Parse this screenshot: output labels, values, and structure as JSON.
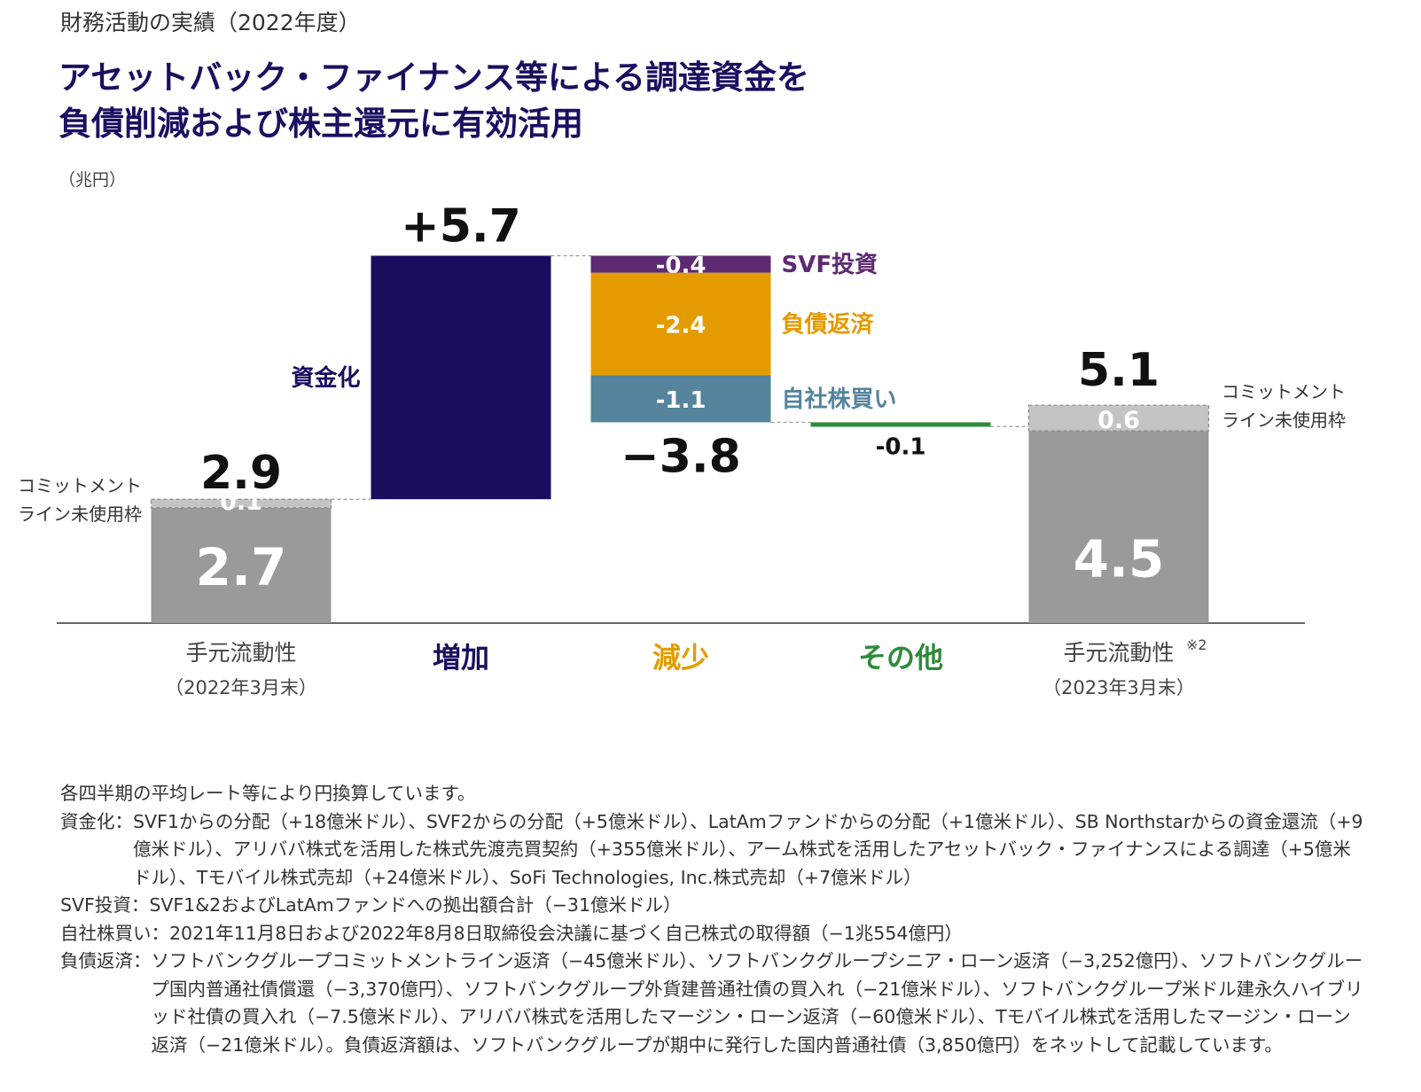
{
  "header": {
    "eyebrow": "財務活動の実績（2022年度）",
    "headline_line1": "アセットバック・ファイナンス等による調達資金を",
    "headline_line2": "負債削減および株主還元に有効活用"
  },
  "chart_data": {
    "type": "bar",
    "subtype": "waterfall",
    "unit_label": "（兆円）",
    "categories": [
      {
        "label": "手元流動性",
        "sublabel": "（2022年3月末）",
        "color": "#444444"
      },
      {
        "label": "増加",
        "sublabel": "",
        "color": "#1a1060"
      },
      {
        "label": "減少",
        "sublabel": "",
        "color": "#e39c00"
      },
      {
        "label": "その他",
        "sublabel": "",
        "color": "#2e8b3a"
      },
      {
        "label": "手元流動性",
        "sublabel": "（2023年3月末）",
        "color": "#444444",
        "superscript": "※2"
      }
    ],
    "start": {
      "base_value": 2.7,
      "base_label": "2.7",
      "commitment_value": 0.1,
      "commitment_label": "0.1",
      "total_label": "2.9",
      "commitment_note_line1": "コミットメント",
      "commitment_note_line2": "ライン未使用枠",
      "base_color": "#9a9a9a",
      "commitment_color": "#c4c4c4"
    },
    "increase": {
      "value": 5.7,
      "total_label": "+5.7",
      "name": "資金化",
      "color": "#1a0c5e"
    },
    "decrease": {
      "total": -3.8,
      "total_label": "−3.8",
      "components": [
        {
          "name": "SVF投資",
          "value": -0.4,
          "label": "-0.4",
          "color": "#5e2a72"
        },
        {
          "name": "負債返済",
          "value": -2.4,
          "label": "-2.4",
          "color": "#e49b00"
        },
        {
          "name": "自社株買い",
          "value": -1.1,
          "label": "-1.1",
          "color": "#55849c"
        }
      ]
    },
    "other": {
      "value": -0.1,
      "label": "-0.1",
      "color": "#2e8b3a"
    },
    "end": {
      "base_value": 4.5,
      "base_label": "4.5",
      "commitment_value": 0.6,
      "commitment_label": "0.6",
      "total_label": "5.1",
      "commitment_note_line1": "コミットメント",
      "commitment_note_line2": "ライン未使用枠",
      "base_color": "#9a9a9a",
      "commitment_color": "#c4c4c4"
    }
  },
  "notes": [
    {
      "label": "",
      "text": "各四半期の平均レート等により円換算しています。"
    },
    {
      "label": "資金化：",
      "text": "SVF1からの分配（+18億米ドル）、SVF2からの分配（+5億米ドル）、LatAmファンドからの分配（+1億米ドル）、SB Northstarからの資金還流（+9億米ドル）、アリババ株式を活用した株式先渡売買契約（+355億米ドル）、アーム株式を活用したアセットバック・ファイナンスによる調達（+5億米ドル）、Tモバイル株式売却（+24億米ドル）、SoFi Technologies, Inc.株式売却（+7億米ドル）"
    },
    {
      "label": "SVF投資：",
      "text": "SVF1&2およびLatAmファンドへの拠出額合計（−31億米ドル）"
    },
    {
      "label": "自社株買い：",
      "text": "2021年11月8日および2022年8月8日取締役会決議に基づく自己株式の取得額（−1兆554億円）"
    },
    {
      "label": "負債返済：",
      "text": "ソフトバンクグループコミットメントライン返済（−45億米ドル）、ソフトバンクグループシニア・ローン返済（−3,252億円）、ソフトバンクグループ国内普通社債償還（−3,370億円）、ソフトバンクグループ外貨建普通社債の買入れ（−21億米ドル）、ソフトバンクグループ米ドル建永久ハイブリッド社債の買入れ（−7.5億米ドル）、アリババ株式を活用したマージン・ローン返済（−60億米ドル）、Tモバイル株式を活用したマージン・ローン返済（−21億米ドル）。負債返済額は、ソフトバンクグループが期中に発行した国内普通社債（3,850億円）をネットして記載しています。"
    }
  ]
}
